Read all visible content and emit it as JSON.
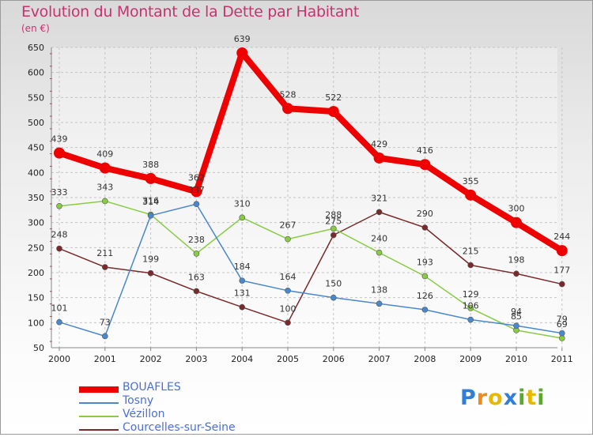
{
  "title": "Evolution du Montant de la Dette par Habitant",
  "unit": "(en €)",
  "logo": {
    "letters": [
      "P",
      "r",
      "o",
      "x",
      "i",
      "t",
      "i"
    ],
    "colors": [
      "#2f7fd6",
      "#f08a1c",
      "#e8b800",
      "#2f7fd6",
      "#5aaa2a",
      "#e8b800",
      "#5aaa2a"
    ]
  },
  "chart_data": {
    "type": "line",
    "categories": [
      "2000",
      "2001",
      "2002",
      "2003",
      "2004",
      "2005",
      "2006",
      "2007",
      "2008",
      "2009",
      "2010",
      "2011"
    ],
    "ylim": [
      50,
      650
    ],
    "yticks": [
      "50",
      "100",
      "150",
      "200",
      "250",
      "300",
      "350",
      "400",
      "450",
      "500",
      "550",
      "600",
      "650"
    ],
    "grid": true,
    "legend": "bottom-left",
    "series": [
      {
        "name": "BOUAFLES",
        "color": "#ee0000",
        "width": 8,
        "dot": 7,
        "values": [
          439,
          409,
          388,
          362,
          639,
          528,
          522,
          429,
          416,
          355,
          300,
          244
        ],
        "labels": [
          "439",
          "409",
          "388",
          "362",
          "639",
          "528",
          "522",
          "429",
          "416",
          "355",
          "300",
          "244"
        ]
      },
      {
        "name": "Tosny",
        "color": "#4a88cc",
        "width": 1.5,
        "dot": 3.5,
        "values": [
          101,
          73,
          314,
          337,
          184,
          164,
          150,
          138,
          126,
          106,
          94,
          79
        ],
        "labels": [
          "101",
          "73",
          "314",
          "337",
          "184",
          "164",
          "150",
          "138",
          "126",
          "106",
          "94",
          "79"
        ]
      },
      {
        "name": "Vézillon",
        "color": "#88cc44",
        "width": 1.5,
        "dot": 3.5,
        "values": [
          333,
          343,
          316,
          238,
          310,
          267,
          288,
          240,
          193,
          129,
          85,
          69
        ],
        "labels": [
          "333",
          "343",
          "316",
          "238",
          "310",
          "267",
          "288",
          "240",
          "193",
          "129",
          "85",
          "69"
        ]
      },
      {
        "name": "Courcelles-sur-Seine",
        "color": "#7a2a2a",
        "width": 1.5,
        "dot": 3.5,
        "values": [
          248,
          211,
          199,
          163,
          131,
          100,
          275,
          321,
          290,
          215,
          198,
          177
        ],
        "labels": [
          "248",
          "211",
          "199",
          "163",
          "131",
          "100",
          "275",
          "321",
          "290",
          "215",
          "198",
          "177"
        ]
      }
    ]
  }
}
